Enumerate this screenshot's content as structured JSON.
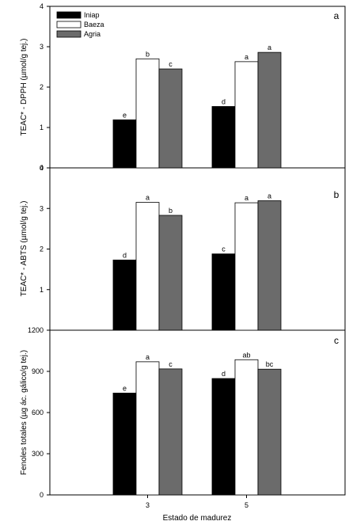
{
  "chart_data": [
    {
      "type": "bar",
      "panel_label": "a",
      "categories": [
        "3",
        "5"
      ],
      "ylabel": "TEAC* - DPPH (µmol/g tej.)",
      "ylim": [
        0,
        4
      ],
      "yticks": [
        "0",
        "1",
        "2",
        "3",
        "4"
      ],
      "series": [
        {
          "name": "Iniap",
          "values": [
            1.19,
            1.52
          ],
          "letters": [
            "e",
            "d"
          ]
        },
        {
          "name": "Baeza",
          "values": [
            2.7,
            2.63
          ],
          "letters": [
            "b",
            "a"
          ]
        },
        {
          "name": "Agria",
          "values": [
            2.45,
            2.86
          ],
          "letters": [
            "c",
            "a"
          ]
        }
      ],
      "legend": "top-left",
      "grid": false
    },
    {
      "type": "bar",
      "panel_label": "b",
      "categories": [
        "3",
        "5"
      ],
      "ylabel": "TEAC* - ABTS (µmol/g tej.)",
      "ylim": [
        0,
        4
      ],
      "yticks": [
        "1",
        "2",
        "3",
        "4"
      ],
      "series": [
        {
          "name": "Iniap",
          "values": [
            1.73,
            1.88
          ],
          "letters": [
            "d",
            "c"
          ]
        },
        {
          "name": "Baeza",
          "values": [
            3.15,
            3.14
          ],
          "letters": [
            "a",
            "a"
          ]
        },
        {
          "name": "Agria",
          "values": [
            2.83,
            3.19
          ],
          "letters": [
            "b",
            "a"
          ]
        }
      ],
      "grid": false
    },
    {
      "type": "bar",
      "panel_label": "c",
      "categories": [
        "3",
        "5"
      ],
      "xlabel": "Estado de madurez",
      "ylabel": "Fenoles totales (µg ác. gálico/g tej.)",
      "ylim": [
        0,
        1200
      ],
      "yticks": [
        "0",
        "300",
        "600",
        "900",
        "1200"
      ],
      "series": [
        {
          "name": "Iniap",
          "values": [
            742,
            848
          ],
          "letters": [
            "e",
            "d"
          ]
        },
        {
          "name": "Baeza",
          "values": [
            970,
            985
          ],
          "letters": [
            "a",
            "ab"
          ]
        },
        {
          "name": "Agria",
          "values": [
            918,
            916
          ],
          "letters": [
            "c",
            "bc"
          ]
        }
      ],
      "grid": false
    }
  ],
  "colors": {
    "Iniap": "#000000",
    "Baeza": "#ffffff",
    "Agria": "#6b6b6b"
  }
}
